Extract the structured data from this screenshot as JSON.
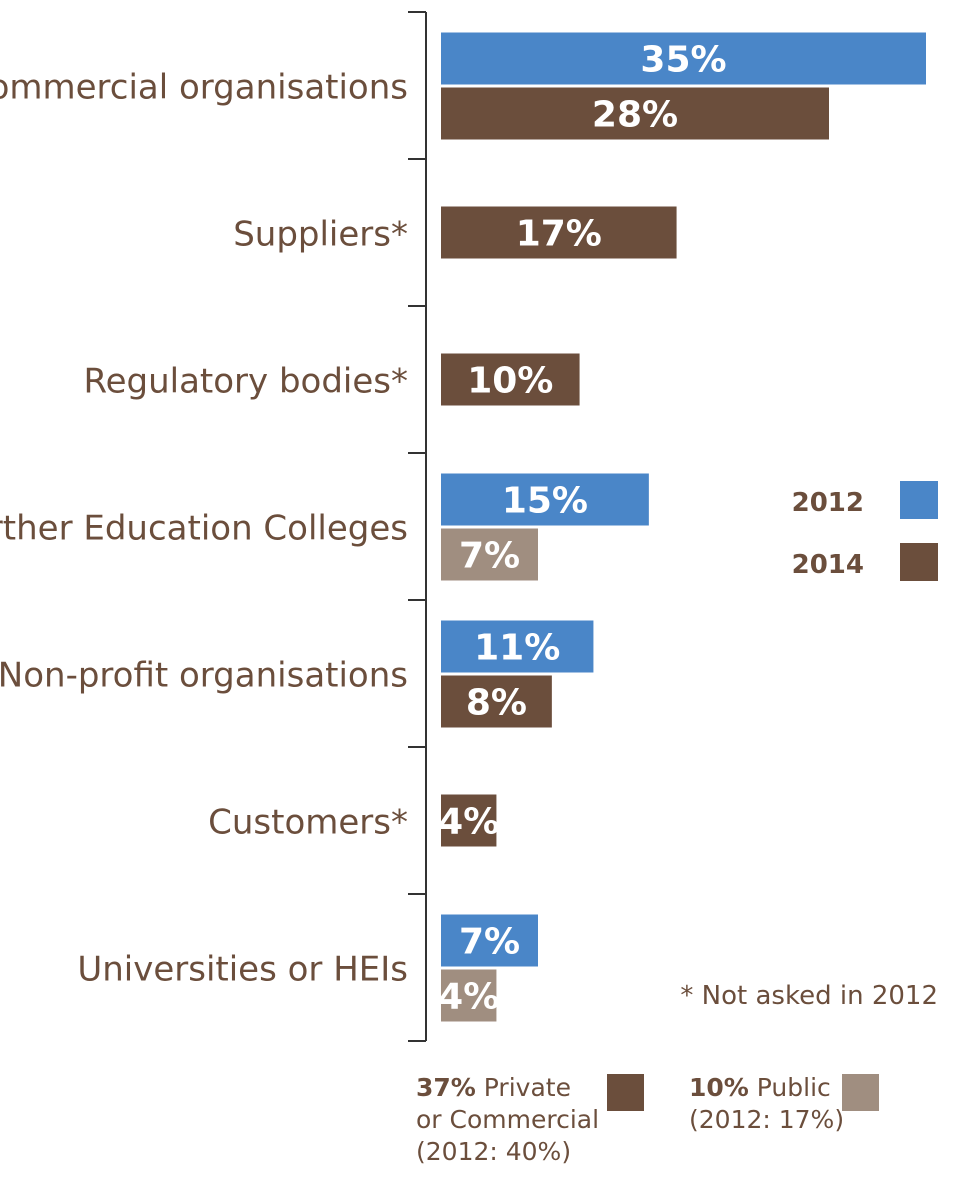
{
  "chart_data": {
    "type": "bar",
    "orientation": "horizontal",
    "categories": [
      "Commercial organisations",
      "Suppliers*",
      "Regulatory bodies*",
      "Further Education Colleges",
      "Non-profit organisations",
      "Customers*",
      "Universities or HEIs"
    ],
    "series": [
      {
        "name": "2012",
        "values": [
          35,
          null,
          null,
          15,
          11,
          null,
          7
        ],
        "color": "#4a86c8"
      },
      {
        "name": "2014",
        "values": [
          28,
          17,
          10,
          7,
          8,
          4,
          4
        ],
        "color": "#6b4e3c"
      }
    ],
    "highlight_public_color": "#a08e80",
    "public_sector_categories": [
      "Further Education Colleges",
      "Universities or HEIs"
    ],
    "value_format": "{v}%",
    "legend": {
      "placement": "right",
      "items": [
        "2012",
        "2014"
      ]
    },
    "xlim": [
      0,
      35
    ],
    "footnote": "* Not asked in 2012",
    "grid": false
  },
  "summary": {
    "private": {
      "value": "37%",
      "label": "Private",
      "label2": "or Commercial",
      "note": "(2012: 40%)",
      "color": "#6b4e3c"
    },
    "public": {
      "value": "10%",
      "label": "Public",
      "note": "(2012: 17%)",
      "color": "#a08e80"
    }
  }
}
